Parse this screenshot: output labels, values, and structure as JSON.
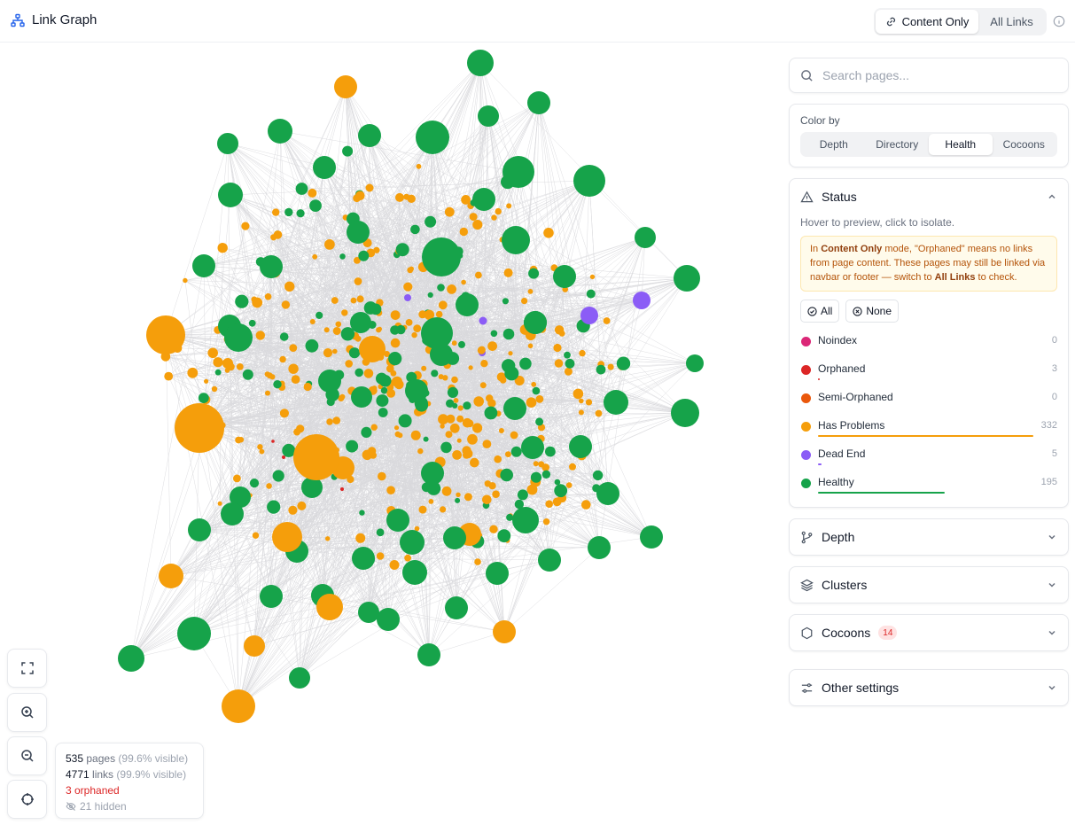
{
  "header": {
    "title": "Link Graph",
    "modes": [
      {
        "label": "Content Only",
        "active": true
      },
      {
        "label": "All Links",
        "active": false
      }
    ]
  },
  "search": {
    "placeholder": "Search pages..."
  },
  "color_by": {
    "label": "Color by",
    "options": [
      "Depth",
      "Directory",
      "Health",
      "Cocoons"
    ],
    "selected": "Health"
  },
  "status": {
    "title": "Status",
    "hint": "Hover to preview, click to isolate.",
    "notice": {
      "p1": "In ",
      "mode": "Content Only",
      "p2": " mode, \"Orphaned\" means no links from page content. These pages may still be linked via navbar or footer — switch to ",
      "link": "All Links",
      "p3": " to check."
    },
    "all_label": "All",
    "none_label": "None",
    "items": [
      {
        "label": "Noindex",
        "count": "0",
        "color": "#db2777"
      },
      {
        "label": "Orphaned",
        "count": "3",
        "color": "#dc2626"
      },
      {
        "label": "Semi-Orphaned",
        "count": "0",
        "color": "#ea580c"
      },
      {
        "label": "Has Problems",
        "count": "332",
        "color": "#f59e0b"
      },
      {
        "label": "Dead End",
        "count": "5",
        "color": "#8b5cf6"
      },
      {
        "label": "Healthy",
        "count": "195",
        "color": "#16a34a"
      }
    ]
  },
  "sections": {
    "depth": "Depth",
    "clusters": "Clusters",
    "cocoons": "Cocoons",
    "cocoons_badge": "14",
    "other": "Other settings"
  },
  "stats": {
    "pages": "535",
    "pages_label": "pages",
    "pages_visible": "(99.6% visible)",
    "links": "4771",
    "links_label": "links",
    "links_visible": "(99.9% visible)",
    "orphaned": "3 orphaned",
    "hidden": "21 hidden"
  },
  "colors": {
    "healthy": "#16a34a",
    "problems": "#f59e0b",
    "dead_end": "#8b5cf6",
    "orphaned": "#dc2626",
    "edge": "#d9d9dc"
  }
}
